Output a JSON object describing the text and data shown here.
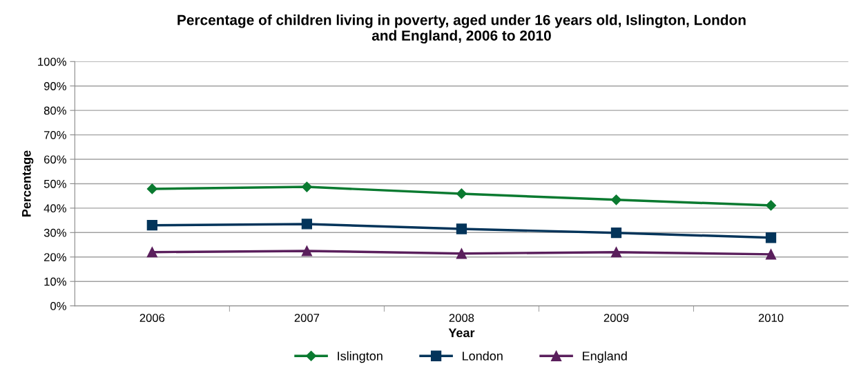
{
  "chart_data": {
    "type": "line",
    "title": "Percentage of children living in poverty, aged under 16 years old, Islington, London\nand England, 2006 to 2010",
    "xlabel": "Year",
    "ylabel": "Percentage",
    "categories": [
      "2006",
      "2007",
      "2008",
      "2009",
      "2010"
    ],
    "series": [
      {
        "name": "Islington",
        "color": "#0a7a30",
        "marker": "diamond",
        "values": [
          47.9,
          48.7,
          45.9,
          43.4,
          41.1
        ]
      },
      {
        "name": "London",
        "color": "#03345a",
        "marker": "square",
        "values": [
          33.0,
          33.5,
          31.5,
          29.9,
          27.9
        ]
      },
      {
        "name": "England",
        "color": "#5a1f5c",
        "marker": "triangle",
        "values": [
          22.0,
          22.5,
          21.4,
          22.0,
          21.1
        ]
      }
    ],
    "ylim": [
      0,
      100
    ],
    "yticks": [
      {
        "value": 0,
        "label": "0%"
      },
      {
        "value": 10,
        "label": "10%"
      },
      {
        "value": 20,
        "label": "20%"
      },
      {
        "value": 30,
        "label": "30%"
      },
      {
        "value": 40,
        "label": "40%"
      },
      {
        "value": 50,
        "label": "50%"
      },
      {
        "value": 60,
        "label": "60%"
      },
      {
        "value": 70,
        "label": "70%"
      },
      {
        "value": 80,
        "label": "80%"
      },
      {
        "value": 90,
        "label": "90%"
      },
      {
        "value": 100,
        "label": "100%"
      }
    ],
    "grid": "y",
    "legend": "bottom",
    "line_style": "solid"
  }
}
